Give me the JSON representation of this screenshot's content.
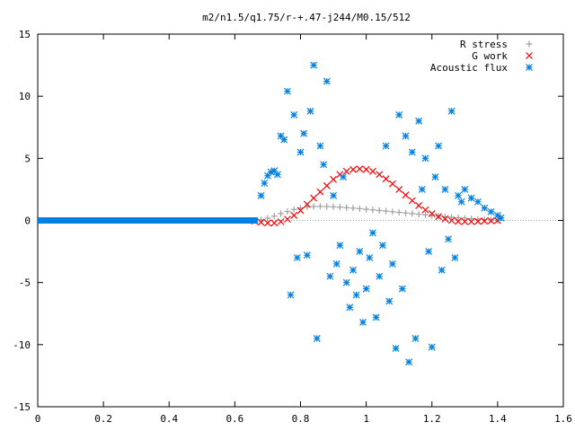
{
  "chart_data": {
    "type": "scatter",
    "title": "m2/n1.5/q1.75/r-+.47-j244/M0.15/512",
    "xlabel": "",
    "ylabel": "",
    "xlim": [
      0,
      1.6
    ],
    "ylim": [
      -15,
      15
    ],
    "xticks": [
      "0",
      "0.2",
      "0.4",
      "0.6",
      "0.8",
      "1",
      "1.2",
      "1.4",
      "1.6"
    ],
    "yticks": [
      "15",
      "10",
      "5",
      "0",
      "-5",
      "-10",
      "-15"
    ],
    "xtick_values": [
      0,
      0.2,
      0.4,
      0.6,
      0.8,
      1.0,
      1.2,
      1.4,
      1.6
    ],
    "ytick_values": [
      15,
      10,
      5,
      0,
      -5,
      -10,
      -15
    ],
    "grid": false,
    "legend_position": "top-right",
    "series": [
      {
        "name": "R stress",
        "color": "#a0a0a0",
        "marker": "plus",
        "x": [
          0.68,
          0.7,
          0.72,
          0.74,
          0.76,
          0.78,
          0.8,
          0.82,
          0.84,
          0.86,
          0.88,
          0.9,
          0.92,
          0.94,
          0.96,
          0.98,
          1.0,
          1.02,
          1.04,
          1.06,
          1.08,
          1.1,
          1.12,
          1.14,
          1.16,
          1.18,
          1.2,
          1.22,
          1.24,
          1.26,
          1.28,
          1.3,
          1.32,
          1.34,
          1.36,
          1.38,
          1.4
        ],
        "y": [
          0.05,
          0.18,
          0.35,
          0.55,
          0.72,
          0.88,
          1.0,
          1.08,
          1.12,
          1.13,
          1.12,
          1.1,
          1.07,
          1.03,
          0.99,
          0.95,
          0.9,
          0.85,
          0.8,
          0.75,
          0.7,
          0.65,
          0.6,
          0.55,
          0.5,
          0.45,
          0.4,
          0.35,
          0.3,
          0.26,
          0.22,
          0.18,
          0.14,
          0.1,
          0.07,
          0.04,
          0.02
        ]
      },
      {
        "name": "G work",
        "color": "#ff0000",
        "marker": "cross",
        "x": [
          0.66,
          0.68,
          0.7,
          0.72,
          0.74,
          0.76,
          0.78,
          0.8,
          0.82,
          0.84,
          0.86,
          0.88,
          0.9,
          0.92,
          0.94,
          0.96,
          0.98,
          1.0,
          1.02,
          1.04,
          1.06,
          1.08,
          1.1,
          1.12,
          1.14,
          1.16,
          1.18,
          1.2,
          1.22,
          1.24,
          1.26,
          1.28,
          1.3,
          1.32,
          1.34,
          1.36,
          1.38,
          1.4
        ],
        "y": [
          -0.05,
          -0.15,
          -0.2,
          -0.2,
          -0.1,
          0.1,
          0.4,
          0.8,
          1.3,
          1.8,
          2.3,
          2.8,
          3.3,
          3.7,
          3.95,
          4.1,
          4.15,
          4.1,
          3.95,
          3.7,
          3.35,
          2.95,
          2.5,
          2.05,
          1.6,
          1.2,
          0.85,
          0.55,
          0.3,
          0.12,
          0.0,
          -0.08,
          -0.1,
          -0.1,
          -0.08,
          -0.05,
          -0.03,
          -0.01
        ]
      },
      {
        "name": "Acoustic flux",
        "color": "#0080e0",
        "marker": "star",
        "x": [
          0.68,
          0.69,
          0.7,
          0.71,
          0.72,
          0.73,
          0.74,
          0.75,
          0.76,
          0.77,
          0.78,
          0.79,
          0.8,
          0.81,
          0.82,
          0.83,
          0.84,
          0.85,
          0.86,
          0.87,
          0.88,
          0.89,
          0.9,
          0.91,
          0.92,
          0.93,
          0.94,
          0.95,
          0.96,
          0.97,
          0.98,
          0.99,
          1.0,
          1.01,
          1.02,
          1.03,
          1.04,
          1.05,
          1.06,
          1.07,
          1.08,
          1.09,
          1.1,
          1.11,
          1.12,
          1.13,
          1.14,
          1.15,
          1.16,
          1.17,
          1.18,
          1.19,
          1.2,
          1.21,
          1.22,
          1.23,
          1.24,
          1.25,
          1.26,
          1.27,
          1.28,
          1.29,
          1.3,
          1.32,
          1.34,
          1.36,
          1.38,
          1.4,
          1.41
        ],
        "y": [
          2.0,
          3.0,
          3.6,
          3.9,
          4.0,
          3.7,
          6.8,
          6.5,
          10.4,
          -6.0,
          8.5,
          -3.0,
          5.5,
          7.0,
          -2.8,
          8.8,
          12.5,
          -9.5,
          6.0,
          4.5,
          11.2,
          -4.5,
          2.0,
          -3.5,
          -2.0,
          3.5,
          -5.0,
          -7.0,
          -4.0,
          -6.0,
          -2.5,
          -8.2,
          -5.5,
          -3.0,
          -1.0,
          -7.8,
          -4.5,
          -2.0,
          6.0,
          -6.5,
          -3.5,
          -10.3,
          8.5,
          -5.5,
          6.8,
          -11.4,
          5.5,
          -9.5,
          8.0,
          2.5,
          5.0,
          -2.5,
          -10.2,
          3.5,
          6.0,
          -4.0,
          2.5,
          -1.5,
          8.8,
          -3.0,
          2.0,
          1.5,
          2.5,
          1.8,
          1.5,
          1.0,
          0.7,
          0.4,
          0.2
        ]
      }
    ]
  }
}
